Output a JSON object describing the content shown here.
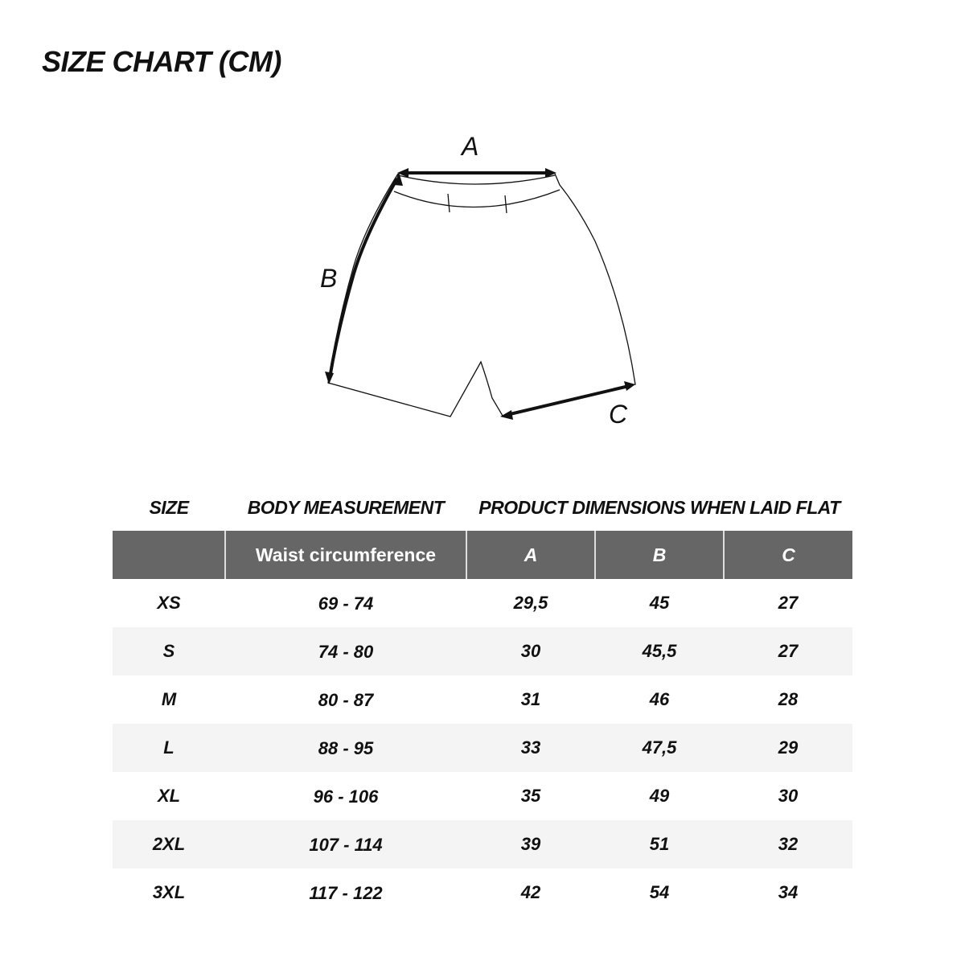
{
  "title": "SIZE CHART (CM)",
  "diagram": {
    "labels": {
      "a": "A",
      "b": "B",
      "c": "C"
    }
  },
  "table": {
    "group_headers": {
      "size": "SIZE",
      "body": "BODY MEASUREMENT",
      "product": "PRODUCT DIMENSIONS WHEN LAID FLAT"
    },
    "columns": [
      "",
      "Waist circumference",
      "A",
      "B",
      "C"
    ],
    "rows": [
      [
        "XS",
        "69 - 74",
        "29,5",
        "45",
        "27"
      ],
      [
        "S",
        "74 - 80",
        "30",
        "45,5",
        "27"
      ],
      [
        "M",
        "80 - 87",
        "31",
        "46",
        "28"
      ],
      [
        "L",
        "88 - 95",
        "33",
        "47,5",
        "29"
      ],
      [
        "XL",
        "96 - 106",
        "35",
        "49",
        "30"
      ],
      [
        "2XL",
        "107 - 114",
        "39",
        "51",
        "32"
      ],
      [
        "3XL",
        "117 - 122",
        "42",
        "54",
        "34"
      ]
    ]
  },
  "colors": {
    "header_bg": "#666666",
    "stripe_bg": "#f4f4f4"
  }
}
